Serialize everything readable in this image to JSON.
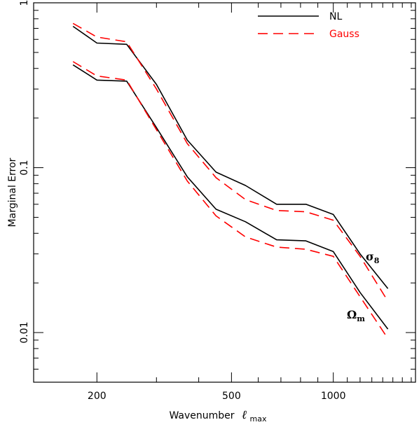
{
  "chart_data": {
    "type": "line",
    "xlabel": "Wavenumber",
    "xlabel_symbol": "ℓ",
    "xlabel_sub": "max",
    "ylabel": "Marginal Error",
    "xscale": "log",
    "yscale": "log",
    "xlim": [
      130,
      1750
    ],
    "ylim": [
      0.005,
      1
    ],
    "x_ticks": [
      {
        "value": 200,
        "label": "200"
      },
      {
        "value": 500,
        "label": "500"
      },
      {
        "value": 1000,
        "label": "1000"
      }
    ],
    "y_ticks": [
      {
        "value": 1,
        "label": "1"
      },
      {
        "value": 0.1,
        "label": "0.1"
      },
      {
        "value": 0.01,
        "label": "0.01"
      }
    ],
    "grid": false,
    "legend_position": "top-right",
    "legend": [
      {
        "label": "NL",
        "color": "#000000",
        "style": "solid"
      },
      {
        "label": "Gauss",
        "color": "#ff0000",
        "style": "dashed"
      }
    ],
    "annotations": [
      {
        "text": "σ",
        "sub": "8",
        "x": 1370,
        "y": 0.034
      },
      {
        "text": "Ω",
        "sub": "m",
        "x": 1250,
        "y": 0.0115
      }
    ],
    "series": [
      {
        "name": "NL",
        "group": "σ8",
        "color": "#000000",
        "style": "solid",
        "x": [
          170,
          200,
          245,
          300,
          370,
          450,
          550,
          680,
          830,
          1000,
          1200,
          1450
        ],
        "y": [
          0.72,
          0.57,
          0.56,
          0.32,
          0.147,
          0.094,
          0.078,
          0.06,
          0.06,
          0.052,
          0.03,
          0.0185
        ]
      },
      {
        "name": "Gauss",
        "group": "σ8",
        "color": "#ff0000",
        "style": "dashed",
        "x": [
          170,
          200,
          245,
          300,
          370,
          450,
          550,
          680,
          830,
          1000,
          1200,
          1450
        ],
        "y": [
          0.75,
          0.62,
          0.58,
          0.3,
          0.14,
          0.087,
          0.064,
          0.055,
          0.054,
          0.048,
          0.029,
          0.0155
        ]
      },
      {
        "name": "NL",
        "group": "Ωm",
        "color": "#000000",
        "style": "solid",
        "x": [
          170,
          200,
          245,
          300,
          370,
          450,
          550,
          680,
          830,
          1000,
          1200,
          1450
        ],
        "y": [
          0.42,
          0.34,
          0.335,
          0.175,
          0.088,
          0.056,
          0.047,
          0.0365,
          0.036,
          0.031,
          0.0175,
          0.0105
        ]
      },
      {
        "name": "Gauss",
        "group": "Ωm",
        "color": "#ff0000",
        "style": "dashed",
        "x": [
          170,
          200,
          245,
          300,
          370,
          450,
          550,
          680,
          830,
          1000,
          1200,
          1450
        ],
        "y": [
          0.44,
          0.36,
          0.34,
          0.17,
          0.083,
          0.051,
          0.038,
          0.033,
          0.032,
          0.029,
          0.0165,
          0.0092
        ]
      }
    ]
  }
}
